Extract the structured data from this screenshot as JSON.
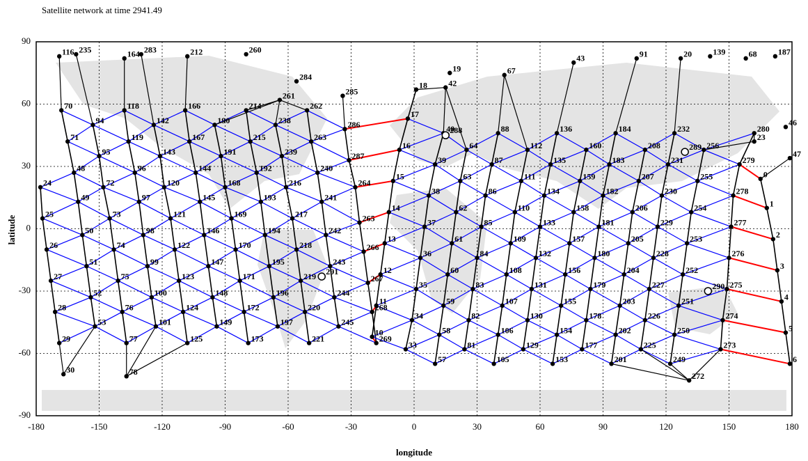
{
  "chart_data": {
    "type": "scatter",
    "title": "Satellite network at time 2941.49",
    "x_label": "longitude",
    "y_label": "latitude",
    "xlim": [
      -180,
      180
    ],
    "ylim": [
      -90,
      90
    ],
    "xticks": [
      -180,
      -150,
      -120,
      -90,
      -60,
      -30,
      0,
      30,
      60,
      90,
      120,
      150,
      180
    ],
    "yticks": [
      -90,
      -60,
      -30,
      0,
      30,
      60,
      90
    ],
    "grid": true,
    "colors": {
      "node": "#000000",
      "plane_link": "#000000",
      "cross_link": "#0000ff",
      "seam_link": "#ff0000",
      "station": "#ffffff"
    },
    "planes": [
      {
        "direction": "asc",
        "labels": [
          "24",
          "25",
          "26",
          "27",
          "28",
          "29"
        ],
        "x": [
          -178,
          -177,
          -175,
          -173,
          -171,
          -169
        ],
        "y": [
          20,
          5,
          -10,
          -25,
          -40,
          -55
        ]
      },
      {
        "direction": "asc",
        "labels": [
          "70",
          "71",
          "48",
          "49",
          "50",
          "51",
          "52",
          "53"
        ],
        "x": [
          -168,
          -165,
          -162,
          -160,
          -158,
          -156,
          -154,
          -152
        ],
        "y": [
          57,
          42,
          27,
          13,
          -3,
          -18,
          -33,
          -47
        ]
      },
      {
        "direction": "asc",
        "labels": [
          "94",
          "95",
          "72",
          "73",
          "74",
          "75",
          "76",
          "77"
        ],
        "x": [
          -153,
          -150,
          -148,
          -145,
          -143,
          -141,
          -139,
          -137
        ],
        "y": [
          50,
          35,
          20,
          5,
          -10,
          -25,
          -40,
          -55
        ]
      },
      {
        "direction": "asc",
        "labels": [
          "118",
          "119",
          "96",
          "97",
          "98",
          "99",
          "100",
          "101"
        ],
        "x": [
          -138,
          -136,
          -133,
          -131,
          -129,
          -127,
          -125,
          -123
        ],
        "y": [
          57,
          42,
          27,
          13,
          -3,
          -18,
          -33,
          -47
        ]
      },
      {
        "direction": "asc",
        "labels": [
          "142",
          "143",
          "120",
          "121",
          "122",
          "123",
          "124",
          "125"
        ],
        "x": [
          -124,
          -121,
          -119,
          -116,
          -114,
          -112,
          -110,
          -108
        ],
        "y": [
          50,
          35,
          20,
          5,
          -10,
          -25,
          -40,
          -55
        ]
      },
      {
        "direction": "asc",
        "labels": [
          "166",
          "167",
          "144",
          "145",
          "146",
          "147",
          "148",
          "149"
        ],
        "x": [
          -109,
          -107,
          -104,
          -102,
          -100,
          -98,
          -96,
          -94
        ],
        "y": [
          57,
          42,
          27,
          13,
          -3,
          -18,
          -33,
          -47
        ]
      },
      {
        "direction": "asc",
        "labels": [
          "190",
          "191",
          "168",
          "169",
          "170",
          "171",
          "172",
          "173"
        ],
        "x": [
          -95,
          -92,
          -90,
          -87,
          -85,
          -83,
          -81,
          -79
        ],
        "y": [
          50,
          35,
          20,
          5,
          -10,
          -25,
          -40,
          -55
        ]
      },
      {
        "direction": "asc",
        "labels": [
          "214",
          "215",
          "192",
          "193",
          "194",
          "195",
          "196",
          "197"
        ],
        "x": [
          -80,
          -78,
          -75,
          -73,
          -71,
          -69,
          -67,
          -65
        ],
        "y": [
          57,
          42,
          27,
          13,
          -3,
          -18,
          -33,
          -47
        ]
      },
      {
        "direction": "asc",
        "labels": [
          "238",
          "239",
          "216",
          "217",
          "218",
          "219",
          "220",
          "221"
        ],
        "x": [
          -66,
          -63,
          -61,
          -58,
          -56,
          -54,
          -52,
          -50
        ],
        "y": [
          50,
          35,
          20,
          5,
          -10,
          -25,
          -40,
          -55
        ]
      },
      {
        "direction": "asc",
        "labels": [
          "262",
          "263",
          "240",
          "241",
          "242",
          "243",
          "244",
          "245"
        ],
        "x": [
          -51,
          -49,
          -46,
          -44,
          -42,
          -40,
          -38,
          -36
        ],
        "y": [
          57,
          42,
          27,
          13,
          -3,
          -18,
          -33,
          -47
        ]
      },
      {
        "direction": "asc",
        "labels": [
          "286",
          "287",
          "264",
          "265",
          "266",
          "267",
          "268",
          "269"
        ],
        "x": [
          -33,
          -31,
          -28,
          -26,
          -24,
          -22,
          -20,
          -18
        ],
        "y": [
          48,
          33,
          20,
          3,
          -11,
          -26,
          -40,
          -55
        ]
      },
      {
        "direction": "desc",
        "labels": [
          "18",
          "17",
          "16",
          "15",
          "14",
          "13",
          "12",
          "11",
          "10"
        ],
        "x": [
          1,
          -3,
          -7,
          -10,
          -12,
          -14,
          -16,
          -18,
          -20
        ],
        "y": [
          67,
          53,
          38,
          23,
          8,
          -7,
          -22,
          -37,
          -52
        ]
      },
      {
        "direction": "desc",
        "labels": [
          "40",
          "39",
          "38",
          "37",
          "36",
          "35",
          "34",
          "33"
        ],
        "x": [
          14,
          10,
          7,
          5,
          3,
          1,
          -1,
          -4
        ],
        "y": [
          46,
          31,
          16,
          1,
          -14,
          -29,
          -44,
          -58
        ]
      },
      {
        "direction": "desc",
        "labels": [
          "64",
          "63",
          "62",
          "61",
          "60",
          "59",
          "58",
          "57"
        ],
        "x": [
          25,
          22,
          20,
          18,
          16,
          14,
          12,
          10
        ],
        "y": [
          38,
          23,
          8,
          -7,
          -22,
          -37,
          -51,
          -65
        ]
      },
      {
        "direction": "desc",
        "labels": [
          "88",
          "87",
          "86",
          "85",
          "84",
          "83",
          "82",
          "81"
        ],
        "x": [
          40,
          37,
          34,
          32,
          30,
          28,
          26,
          24
        ],
        "y": [
          46,
          31,
          16,
          1,
          -14,
          -29,
          -44,
          -58
        ]
      },
      {
        "direction": "desc",
        "labels": [
          "112",
          "111",
          "110",
          "109",
          "108",
          "107",
          "106",
          "105"
        ],
        "x": [
          54,
          51,
          48,
          46,
          44,
          42,
          40,
          38
        ],
        "y": [
          38,
          23,
          8,
          -7,
          -22,
          -37,
          -51,
          -65
        ]
      },
      {
        "direction": "desc",
        "labels": [
          "136",
          "135",
          "134",
          "133",
          "132",
          "131",
          "130",
          "129"
        ],
        "x": [
          68,
          65,
          62,
          60,
          58,
          56,
          54,
          52
        ],
        "y": [
          46,
          31,
          16,
          1,
          -14,
          -29,
          -44,
          -58
        ]
      },
      {
        "direction": "desc",
        "labels": [
          "160",
          "159",
          "158",
          "157",
          "156",
          "155",
          "154",
          "153"
        ],
        "x": [
          82,
          79,
          76,
          74,
          72,
          70,
          68,
          66
        ],
        "y": [
          38,
          23,
          8,
          -7,
          -22,
          -37,
          -51,
          -65
        ]
      },
      {
        "direction": "desc",
        "labels": [
          "184",
          "183",
          "182",
          "181",
          "180",
          "179",
          "178",
          "177"
        ],
        "x": [
          96,
          93,
          90,
          88,
          86,
          84,
          82,
          80
        ],
        "y": [
          46,
          31,
          16,
          1,
          -14,
          -29,
          -44,
          -58
        ]
      },
      {
        "direction": "desc",
        "labels": [
          "208",
          "207",
          "206",
          "205",
          "204",
          "203",
          "202",
          "201"
        ],
        "x": [
          110,
          107,
          104,
          102,
          100,
          98,
          96,
          94
        ],
        "y": [
          38,
          23,
          8,
          -7,
          -22,
          -37,
          -51,
          -65
        ]
      },
      {
        "direction": "desc",
        "labels": [
          "232",
          "231",
          "230",
          "229",
          "228",
          "227",
          "226",
          "225"
        ],
        "x": [
          124,
          121,
          118,
          116,
          114,
          112,
          110,
          108
        ],
        "y": [
          46,
          31,
          16,
          1,
          -14,
          -29,
          -44,
          -58
        ]
      },
      {
        "direction": "desc",
        "labels": [
          "256",
          "255",
          "254",
          "253",
          "252",
          "251",
          "250",
          "249"
        ],
        "x": [
          138,
          135,
          132,
          130,
          128,
          126,
          124,
          122
        ],
        "y": [
          38,
          23,
          8,
          -7,
          -22,
          -37,
          -51,
          -65
        ]
      },
      {
        "direction": "desc",
        "labels": [
          "280",
          "279",
          "278",
          "277",
          "276",
          "275",
          "274",
          "273"
        ],
        "x": [
          162,
          155,
          152,
          151,
          150,
          149,
          147,
          146
        ],
        "y": [
          46,
          31,
          16,
          1,
          -14,
          -29,
          -44,
          -58
        ]
      },
      {
        "direction": "asc",
        "labels": [
          "0",
          "1",
          "2",
          "3",
          "4",
          "5",
          "6"
        ],
        "x": [
          165,
          168,
          171,
          173,
          175,
          177,
          179
        ],
        "y": [
          24,
          10,
          -5,
          -20,
          -35,
          -50,
          -65
        ]
      }
    ],
    "polar_points": {
      "labels": [
        "116",
        "235",
        "164",
        "283",
        "212",
        "260",
        "284",
        "261",
        "285",
        "19",
        "42",
        "67",
        "43",
        "91",
        "139",
        "187",
        "20",
        "68",
        "23",
        "46",
        "47",
        "30",
        "78",
        "272"
      ],
      "x": [
        -169,
        -161,
        -138,
        -130,
        -108,
        -80,
        -56,
        -64,
        -34,
        17,
        15,
        43,
        76,
        106,
        141,
        172,
        127,
        158,
        162,
        177,
        179,
        -167,
        -137,
        131
      ],
      "y": [
        83,
        84,
        82,
        84,
        83,
        84,
        71,
        62,
        64,
        75,
        68,
        74,
        80,
        82,
        83,
        83,
        82,
        82,
        42,
        49,
        34,
        -70,
        -71,
        -73
      ]
    },
    "ground_stations": {
      "labels": [
        "288",
        "289",
        "290",
        "291"
      ],
      "x": [
        15,
        129,
        140,
        -44
      ],
      "y": [
        45,
        37,
        -30,
        -23
      ]
    }
  }
}
